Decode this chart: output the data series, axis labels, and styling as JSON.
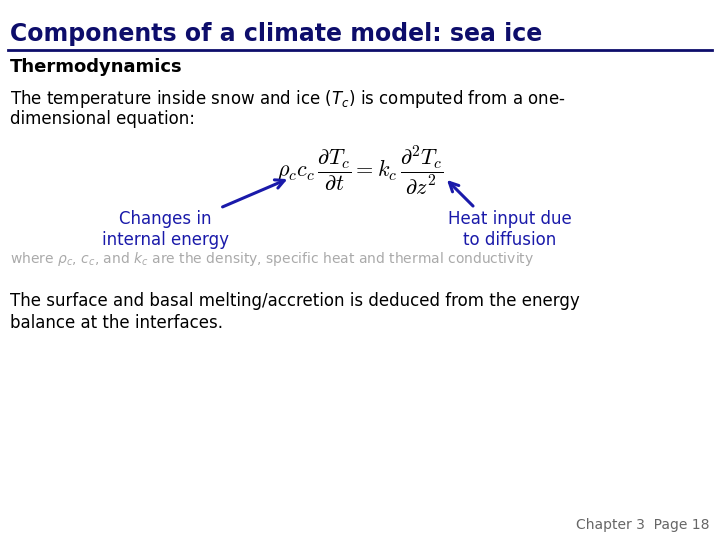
{
  "title": "Components of a climate model: sea ice",
  "title_color": "#0d0d6b",
  "title_fontsize": 17,
  "background_color": "#ffffff",
  "section_header": "Thermodynamics",
  "section_header_fontsize": 13,
  "annotation1": "Changes in\ninternal energy",
  "annotation2": "Heat input due\nto diffusion",
  "annotation_color": "#1a1aaa",
  "annotation_fontsize": 12,
  "where_text_color": "#aaaaaa",
  "where_text_fontsize": 10,
  "bottom_text1": "The surface and basal melting/accretion is deduced from the energy",
  "bottom_text2": "balance at the interfaces.",
  "body_fontsize": 12,
  "footer": "Chapter 3  Page 18",
  "footer_fontsize": 10,
  "footer_color": "#666666",
  "equation_fontsize": 16
}
